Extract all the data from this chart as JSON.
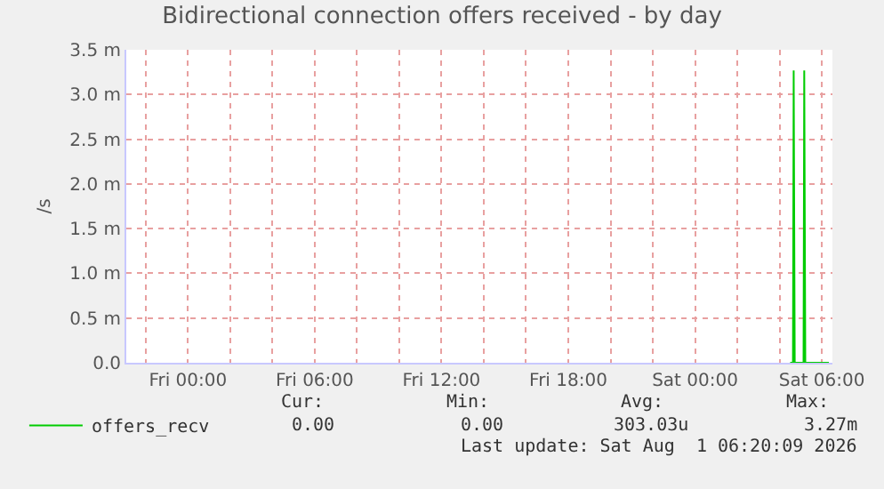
{
  "chart_data": {
    "type": "line",
    "title": "Bidirectional connection offers received - by day",
    "ylabel": "/s",
    "x": [
      "2026-08-01T04:30",
      "2026-08-01T04:38",
      "2026-08-01T04:40",
      "2026-08-01T04:43",
      "2026-08-01T05:08",
      "2026-08-01T05:10",
      "2026-08-01T05:13",
      "2026-08-01T06:20"
    ],
    "series": [
      {
        "name": "offers_recv",
        "color": "#00cc00",
        "values": [
          0,
          0,
          3.27,
          0,
          0,
          3.27,
          0,
          0
        ]
      }
    ],
    "xlim": [
      "2026-07-30T21:05",
      "2026-08-01T06:30"
    ],
    "xticks": [
      {
        "value": "2026-07-30T22:00",
        "label": null
      },
      {
        "value": "2026-07-31T00:00",
        "label": "Fri 00:00"
      },
      {
        "value": "2026-07-31T02:00",
        "label": null
      },
      {
        "value": "2026-07-31T04:00",
        "label": null
      },
      {
        "value": "2026-07-31T06:00",
        "label": "Fri 06:00"
      },
      {
        "value": "2026-07-31T08:00",
        "label": null
      },
      {
        "value": "2026-07-31T10:00",
        "label": null
      },
      {
        "value": "2026-07-31T12:00",
        "label": "Fri 12:00"
      },
      {
        "value": "2026-07-31T14:00",
        "label": null
      },
      {
        "value": "2026-07-31T16:00",
        "label": null
      },
      {
        "value": "2026-07-31T18:00",
        "label": "Fri 18:00"
      },
      {
        "value": "2026-07-31T20:00",
        "label": null
      },
      {
        "value": "2026-07-31T22:00",
        "label": null
      },
      {
        "value": "2026-08-01T00:00",
        "label": "Sat 00:00"
      },
      {
        "value": "2026-08-01T02:00",
        "label": null
      },
      {
        "value": "2026-08-01T04:00",
        "label": null
      },
      {
        "value": "2026-08-01T06:00",
        "label": "Sat 06:00"
      }
    ],
    "ylim": [
      0,
      3.5
    ],
    "yticks": [
      {
        "value": 0,
        "label": "0.0"
      },
      {
        "value": 0.5,
        "label": "0.5 m"
      },
      {
        "value": 1,
        "label": "1.0 m"
      },
      {
        "value": 1.5,
        "label": "1.5 m"
      },
      {
        "value": 2,
        "label": "2.0 m"
      },
      {
        "value": 2.5,
        "label": "2.5 m"
      },
      {
        "value": 3,
        "label": "3.0 m"
      },
      {
        "value": 3.5,
        "label": "3.5 m"
      }
    ],
    "grid": true,
    "legend": "bottom left",
    "marker": "none",
    "line_style": "solid",
    "annotations": [
      "Cur:",
      "Min:",
      "Avg:",
      "Max:",
      "0.00",
      "0.00",
      "303.03u",
      "3.27m",
      "Last update: Sat Aug  1 06:20:09 2026"
    ]
  }
}
